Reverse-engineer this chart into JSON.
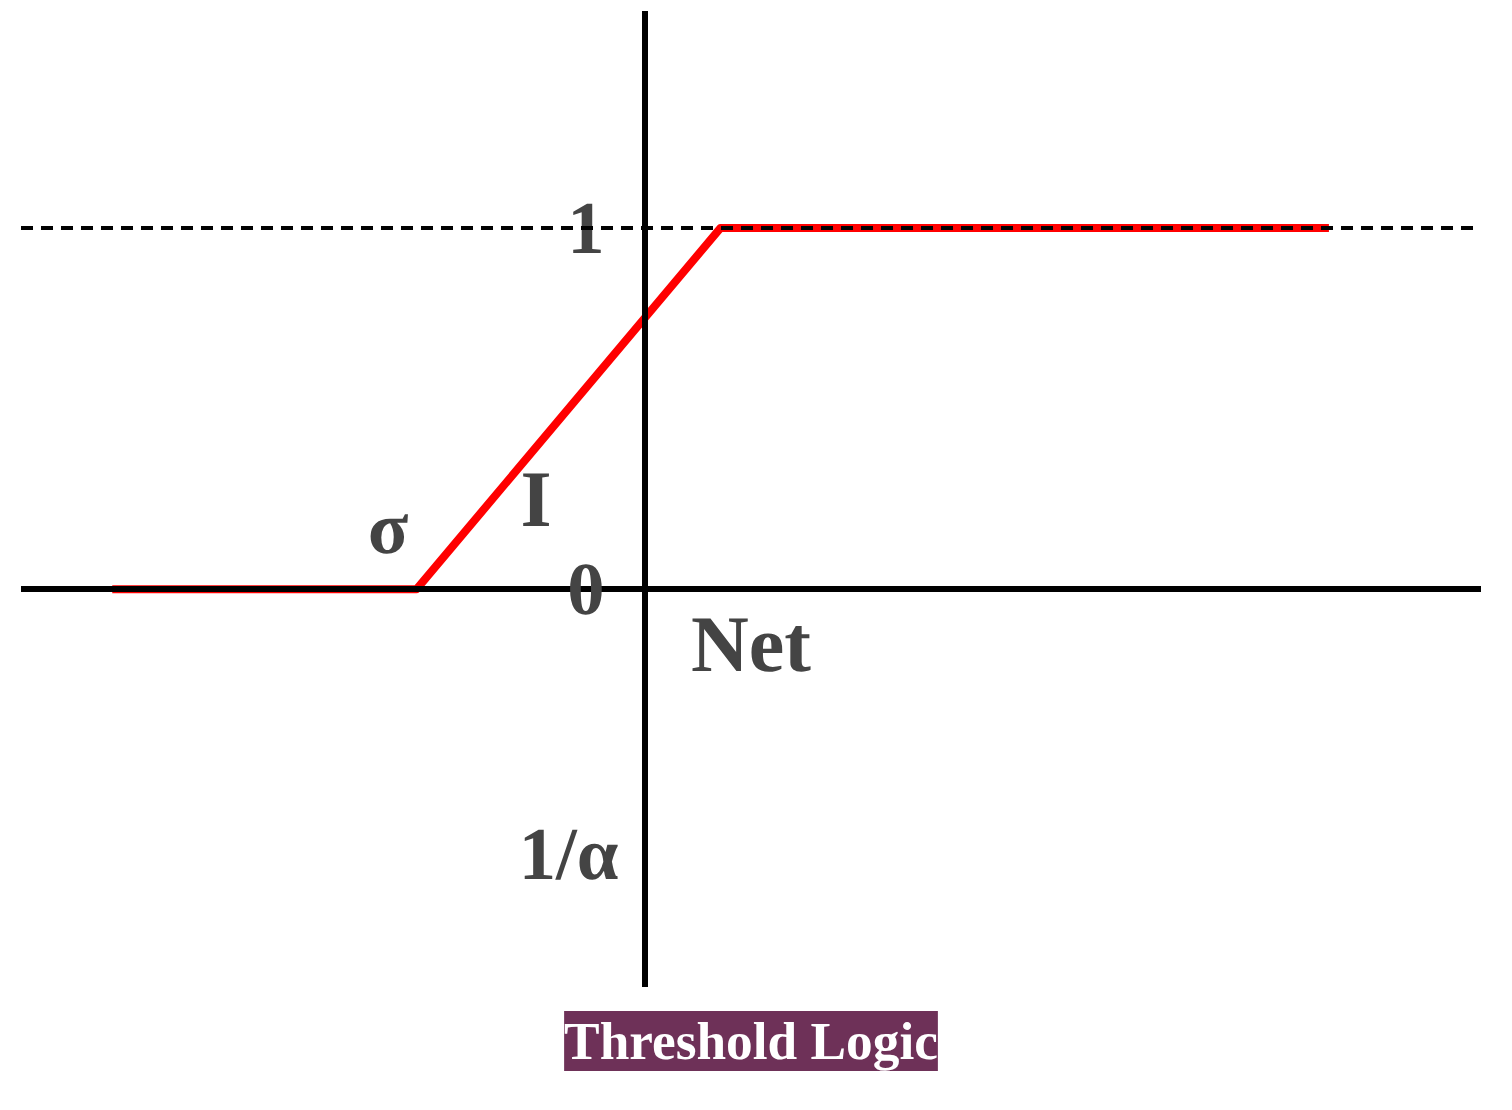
{
  "chart_data": {
    "type": "line",
    "title": "Threshold Logic",
    "xlabel": "Net",
    "ylabel": "I",
    "categories": [
      null,
      null,
      null,
      null,
      null
    ],
    "series": [
      {
        "color": "#ff0000",
        "values": [
          0,
          0,
          1,
          1,
          1
        ]
      }
    ],
    "ylim": [
      -1.1,
      1.6
    ],
    "yticks": [
      0,
      1
    ],
    "tick_labels": "y",
    "grid": false,
    "marker": "none",
    "line_style": "solid",
    "ref_lines": [
      {
        "axis": "y",
        "value": 1,
        "line_style": "dashed",
        "color": "#000000"
      }
    ],
    "annotations": [
      "σ",
      "1/α"
    ]
  }
}
